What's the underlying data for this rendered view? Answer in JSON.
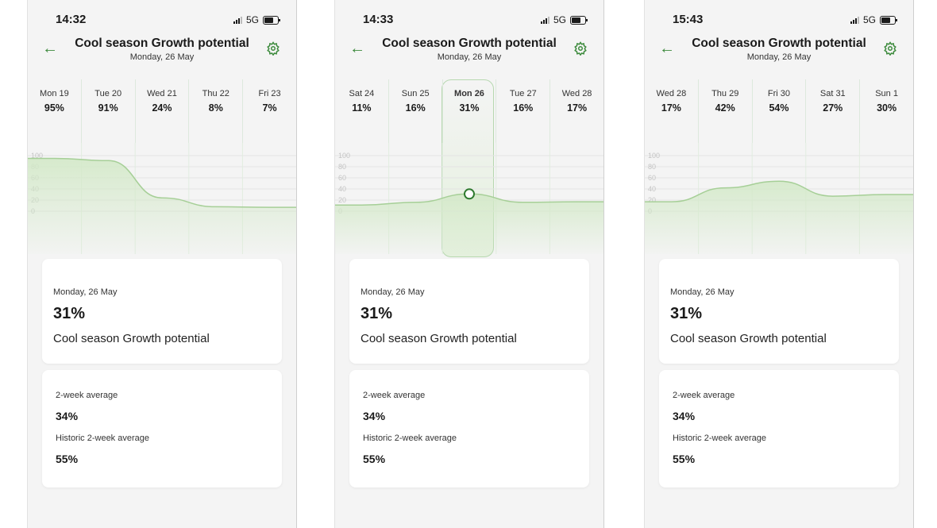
{
  "colors": {
    "accent": "#3c8a3c",
    "chart_fill": "#d3e9c8",
    "chart_line": "#a6cf97"
  },
  "screens": [
    {
      "time": "14:32",
      "network": "5G",
      "header": {
        "title": "Cool season Growth potential",
        "subtitle": "Monday, 26 May"
      },
      "days": [
        {
          "name": "Mon 19",
          "pct": "95%"
        },
        {
          "name": "Tue 20",
          "pct": "91%"
        },
        {
          "name": "Wed 21",
          "pct": "24%"
        },
        {
          "name": "Thu 22",
          "pct": "8%"
        },
        {
          "name": "Fri 23",
          "pct": "7%"
        }
      ],
      "axis_ticks": [
        "100",
        "80",
        "60",
        "40",
        "20",
        "0"
      ],
      "card": {
        "date": "Monday, 26 May",
        "value": "31%",
        "label": "Cool season Growth potential"
      },
      "averages": {
        "label1": "2-week average",
        "value1": "34%",
        "label2": "Historic 2-week average",
        "value2": "55%"
      }
    },
    {
      "time": "14:33",
      "network": "5G",
      "header": {
        "title": "Cool season Growth potential",
        "subtitle": "Monday, 26 May"
      },
      "days": [
        {
          "name": "Sat 24",
          "pct": "11%"
        },
        {
          "name": "Sun 25",
          "pct": "16%"
        },
        {
          "name": "Mon 26",
          "pct": "31%",
          "selected": true
        },
        {
          "name": "Tue 27",
          "pct": "16%"
        },
        {
          "name": "Wed 28",
          "pct": "17%"
        }
      ],
      "axis_ticks": [
        "100",
        "80",
        "60",
        "40",
        "20",
        "0"
      ],
      "card": {
        "date": "Monday, 26 May",
        "value": "31%",
        "label": "Cool season Growth potential"
      },
      "averages": {
        "label1": "2-week average",
        "value1": "34%",
        "label2": "Historic 2-week average",
        "value2": "55%"
      }
    },
    {
      "time": "15:43",
      "network": "5G",
      "header": {
        "title": "Cool season Growth potential",
        "subtitle": "Monday, 26 May"
      },
      "days": [
        {
          "name": "Wed 28",
          "pct": "17%"
        },
        {
          "name": "Thu 29",
          "pct": "42%"
        },
        {
          "name": "Fri 30",
          "pct": "54%"
        },
        {
          "name": "Sat 31",
          "pct": "27%"
        },
        {
          "name": "Sun 1",
          "pct": "30%"
        }
      ],
      "axis_ticks": [
        "100",
        "80",
        "60",
        "40",
        "20",
        "0"
      ],
      "card": {
        "date": "Monday, 26 May",
        "value": "31%",
        "label": "Cool season Growth potential"
      },
      "averages": {
        "label1": "2-week average",
        "value1": "34%",
        "label2": "Historic 2-week average",
        "value2": "55%"
      }
    }
  ],
  "chart_data": [
    {
      "type": "area",
      "x": [
        "Mon 19",
        "Tue 20",
        "Wed 21",
        "Thu 22",
        "Fri 23"
      ],
      "series": [
        {
          "values": [
            95,
            91,
            24,
            8,
            7
          ]
        }
      ],
      "ylim": [
        0,
        100
      ]
    },
    {
      "type": "area",
      "x": [
        "Sat 24",
        "Sun 25",
        "Mon 26",
        "Tue 27",
        "Wed 28"
      ],
      "series": [
        {
          "values": [
            11,
            16,
            31,
            16,
            17
          ]
        }
      ],
      "ylim": [
        0,
        100
      ]
    },
    {
      "type": "area",
      "x": [
        "Wed 28",
        "Thu 29",
        "Fri 30",
        "Sat 31",
        "Sun 1"
      ],
      "series": [
        {
          "values": [
            17,
            42,
            54,
            27,
            30
          ]
        }
      ],
      "ylim": [
        0,
        100
      ]
    }
  ]
}
